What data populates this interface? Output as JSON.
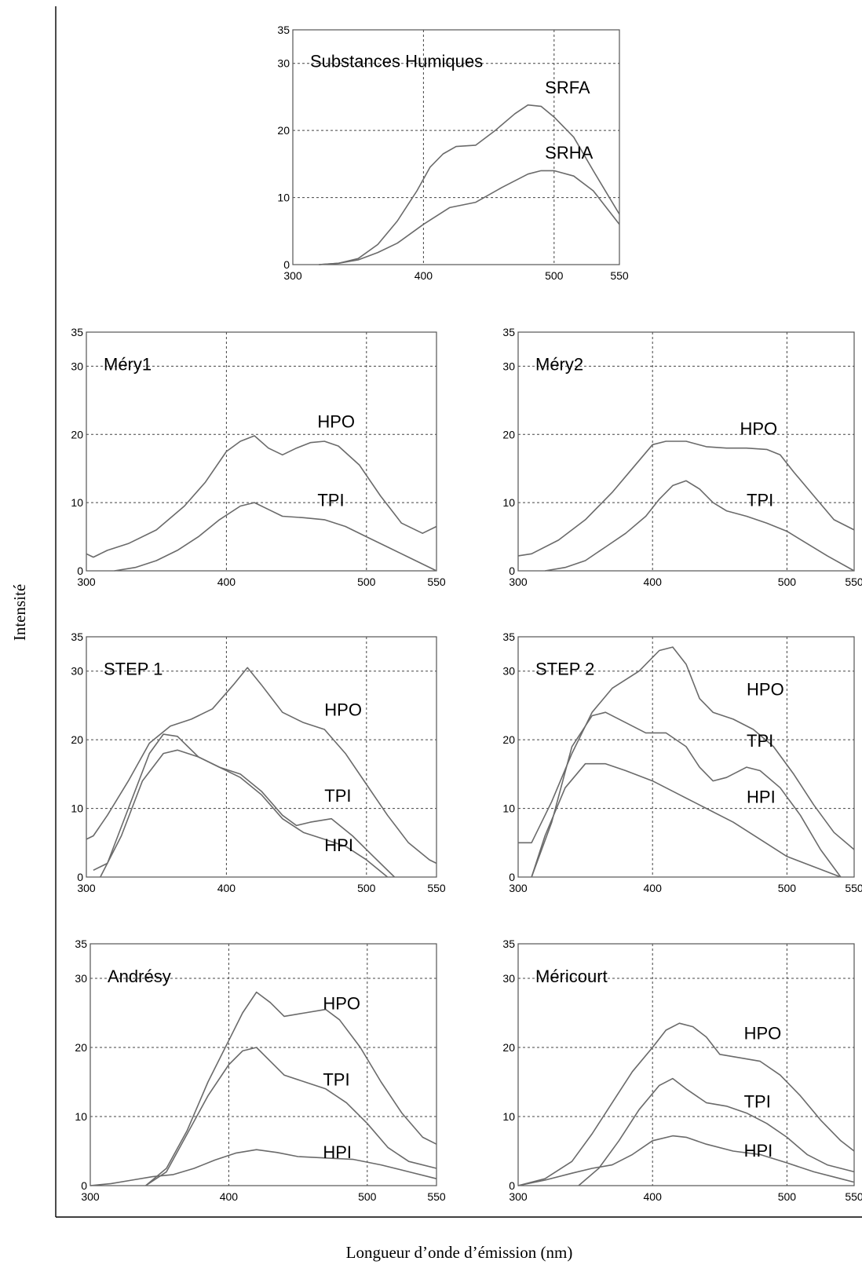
{
  "figure": {
    "y_title": "Intensité",
    "x_title": "Longueur d’onde d’émission (nm)"
  },
  "chart_data": [
    {
      "type": "line",
      "title": "Substances Humiques",
      "xlim": [
        300,
        550
      ],
      "ylim": [
        0,
        35
      ],
      "xticks": [
        300,
        400,
        500,
        550
      ],
      "yticks": [
        0,
        10,
        20,
        30,
        35
      ],
      "grid": true,
      "series": [
        {
          "name": "SRFA",
          "label_at": [
            493,
            25.5
          ],
          "x": [
            320,
            335,
            350,
            365,
            380,
            395,
            405,
            415,
            425,
            440,
            455,
            470,
            480,
            490,
            500,
            515,
            530,
            550
          ],
          "y": [
            0,
            0.2,
            0.9,
            3,
            6.5,
            11,
            14.5,
            16.5,
            17.6,
            17.8,
            20,
            22.5,
            23.8,
            23.6,
            22,
            19,
            14,
            7.5
          ]
        },
        {
          "name": "SRHA",
          "label_at": [
            493,
            15.8
          ],
          "x": [
            320,
            335,
            350,
            365,
            380,
            400,
            420,
            440,
            460,
            480,
            490,
            500,
            515,
            530,
            550
          ],
          "y": [
            0,
            0.2,
            0.7,
            1.8,
            3.2,
            6,
            8.5,
            9.3,
            11.5,
            13.5,
            14,
            14,
            13.2,
            11,
            6
          ]
        }
      ]
    },
    {
      "type": "line",
      "title": "Méry1",
      "xlim": [
        300,
        550
      ],
      "ylim": [
        0,
        35
      ],
      "xticks": [
        300,
        400,
        500,
        550
      ],
      "yticks": [
        0,
        10,
        20,
        30,
        35
      ],
      "grid": true,
      "series": [
        {
          "name": "HPO",
          "label_at": [
            465,
            21
          ],
          "x": [
            300,
            305,
            315,
            330,
            350,
            370,
            385,
            400,
            410,
            420,
            430,
            440,
            450,
            460,
            470,
            480,
            495,
            510,
            525,
            540,
            550
          ],
          "y": [
            2.5,
            2,
            3,
            4,
            6,
            9.5,
            13,
            17.5,
            19,
            19.8,
            18,
            17,
            18,
            18.8,
            19,
            18.3,
            15.5,
            11,
            7,
            5.5,
            6.5
          ],
          "color": "#6a6a6a"
        },
        {
          "name": "TPI",
          "label_at": [
            465,
            9.5
          ],
          "x": [
            320,
            335,
            350,
            365,
            380,
            395,
            410,
            420,
            430,
            440,
            455,
            470,
            485,
            500,
            515,
            530,
            550
          ],
          "y": [
            0,
            0.5,
            1.5,
            3,
            5,
            7.5,
            9.5,
            10,
            9,
            8,
            7.8,
            7.5,
            6.5,
            5,
            3.5,
            2,
            0
          ],
          "color": "#6a6a6a"
        }
      ]
    },
    {
      "type": "line",
      "title": "Méry2",
      "xlim": [
        300,
        550
      ],
      "ylim": [
        0,
        35
      ],
      "xticks": [
        300,
        400,
        500,
        550
      ],
      "yticks": [
        0,
        10,
        20,
        30,
        35
      ],
      "grid": true,
      "series": [
        {
          "name": "HPO",
          "label_at": [
            465,
            20
          ],
          "x": [
            300,
            310,
            330,
            350,
            370,
            385,
            400,
            410,
            425,
            440,
            455,
            470,
            485,
            495,
            505,
            520,
            535,
            550
          ],
          "y": [
            2.2,
            2.5,
            4.5,
            7.5,
            11.5,
            15,
            18.5,
            19,
            19,
            18.2,
            18,
            18,
            17.8,
            17,
            14.5,
            11,
            7.5,
            6
          ],
          "color": "#6a6a6a"
        },
        {
          "name": "TPI",
          "label_at": [
            470,
            9.5
          ],
          "x": [
            320,
            335,
            350,
            365,
            380,
            395,
            405,
            415,
            425,
            435,
            445,
            455,
            470,
            485,
            500,
            515,
            530,
            550
          ],
          "y": [
            0,
            0.5,
            1.5,
            3.5,
            5.5,
            8,
            10.5,
            12.5,
            13.2,
            12,
            10,
            8.8,
            8,
            7,
            5.8,
            4,
            2.2,
            0
          ],
          "color": "#6a6a6a"
        }
      ]
    },
    {
      "type": "line",
      "title": "STEP 1",
      "xlim": [
        300,
        550
      ],
      "ylim": [
        0,
        35
      ],
      "xticks": [
        300,
        400,
        500,
        550
      ],
      "yticks": [
        0,
        10,
        20,
        30,
        35
      ],
      "grid": true,
      "series": [
        {
          "name": "HPO",
          "label_at": [
            470,
            23.5
          ],
          "x": [
            300,
            305,
            315,
            330,
            345,
            360,
            375,
            390,
            405,
            415,
            425,
            440,
            455,
            470,
            485,
            500,
            515,
            530,
            545,
            550
          ],
          "y": [
            5.5,
            6,
            9,
            14,
            19.5,
            22,
            23,
            24.5,
            28,
            30.5,
            28,
            24,
            22.5,
            21.5,
            18,
            13.5,
            9,
            5,
            2.5,
            2
          ],
          "color": "#6a6a6a"
        },
        {
          "name": "TPI",
          "label_at": [
            470,
            11
          ],
          "x": [
            305,
            315,
            330,
            345,
            355,
            365,
            380,
            395,
            410,
            425,
            440,
            450,
            460,
            475,
            490,
            505,
            520
          ],
          "y": [
            1,
            2,
            10,
            18,
            20.8,
            20.5,
            17.5,
            16,
            15,
            12.5,
            9,
            7.5,
            8,
            8.5,
            6,
            3,
            0
          ],
          "color": "#6a6a6a"
        },
        {
          "name": "HPI",
          "label_at": [
            470,
            3.8
          ],
          "x": [
            310,
            325,
            340,
            355,
            365,
            380,
            395,
            410,
            425,
            440,
            455,
            470,
            485,
            500,
            515
          ],
          "y": [
            0,
            6,
            14,
            18,
            18.5,
            17.5,
            16,
            14.5,
            12,
            8.5,
            6.5,
            5.5,
            4.5,
            2.5,
            0
          ],
          "color": "#6a6a6a"
        }
      ]
    },
    {
      "type": "line",
      "title": "STEP 2",
      "xlim": [
        300,
        550
      ],
      "ylim": [
        0,
        35
      ],
      "xticks": [
        300,
        400,
        500,
        550
      ],
      "yticks": [
        0,
        10,
        20,
        30,
        35
      ],
      "grid": true,
      "series": [
        {
          "name": "HPO",
          "label_at": [
            470,
            26.5
          ],
          "x": [
            300,
            310,
            325,
            340,
            355,
            370,
            390,
            405,
            415,
            425,
            435,
            445,
            460,
            475,
            490,
            505,
            520,
            535,
            550
          ],
          "y": [
            5,
            5,
            11,
            18,
            24,
            27.5,
            30,
            33,
            33.5,
            31,
            26,
            24,
            23,
            21.5,
            19,
            15,
            10.5,
            6.5,
            4
          ],
          "color": "#6a6a6a"
        },
        {
          "name": "TPI",
          "label_at": [
            470,
            19
          ],
          "x": [
            310,
            325,
            340,
            355,
            365,
            380,
            395,
            410,
            425,
            435,
            445,
            455,
            470,
            480,
            495,
            510,
            525,
            540
          ],
          "y": [
            0,
            8,
            19,
            23.5,
            24,
            22.5,
            21,
            21,
            19,
            16,
            14,
            14.5,
            16,
            15.5,
            13,
            9,
            4,
            0
          ],
          "color": "#6a6a6a"
        },
        {
          "name": "HPI",
          "label_at": [
            470,
            10.8
          ],
          "x": [
            310,
            320,
            335,
            350,
            365,
            380,
            400,
            420,
            440,
            460,
            480,
            500,
            520,
            540
          ],
          "y": [
            0,
            6,
            13,
            16.5,
            16.5,
            15.5,
            14,
            12,
            10,
            8,
            5.5,
            3,
            1.5,
            0
          ],
          "color": "#444444"
        }
      ]
    },
    {
      "type": "line",
      "title": "Andrésy",
      "xlim": [
        300,
        550
      ],
      "ylim": [
        0,
        35
      ],
      "xticks": [
        300,
        400,
        500,
        550
      ],
      "yticks": [
        0,
        10,
        20,
        30,
        35
      ],
      "grid": true,
      "series": [
        {
          "name": "HPO",
          "label_at": [
            468,
            25.5
          ],
          "x": [
            340,
            355,
            370,
            385,
            400,
            410,
            420,
            430,
            440,
            455,
            470,
            480,
            495,
            510,
            525,
            540,
            550
          ],
          "y": [
            0,
            2.5,
            8,
            15,
            21,
            25,
            28,
            26.5,
            24.5,
            25,
            25.5,
            24,
            20,
            15,
            10.5,
            7,
            6
          ],
          "color": "#3a3a3a"
        },
        {
          "name": "TPI",
          "label_at": [
            468,
            14.5
          ],
          "x": [
            340,
            355,
            370,
            385,
            400,
            410,
            420,
            430,
            440,
            455,
            470,
            485,
            500,
            515,
            530,
            550
          ],
          "y": [
            0,
            2,
            7.5,
            13,
            17.5,
            19.5,
            20,
            18,
            16,
            15,
            14,
            12,
            9,
            5.5,
            3.5,
            2.5
          ],
          "color": "#3a3a3a"
        },
        {
          "name": "HPI",
          "label_at": [
            468,
            4
          ],
          "x": [
            300,
            315,
            330,
            345,
            360,
            375,
            390,
            405,
            420,
            435,
            450,
            470,
            490,
            510,
            530,
            550
          ],
          "y": [
            0,
            0.3,
            0.8,
            1.3,
            1.6,
            2.5,
            3.7,
            4.7,
            5.2,
            4.8,
            4.2,
            4,
            3.8,
            3,
            2,
            1
          ],
          "color": "#3a3a3a"
        }
      ]
    },
    {
      "type": "line",
      "title": "Méricourt",
      "xlim": [
        300,
        550
      ],
      "ylim": [
        0,
        35
      ],
      "xticks": [
        300,
        400,
        500,
        550
      ],
      "yticks": [
        0,
        10,
        20,
        30,
        35
      ],
      "grid": true,
      "series": [
        {
          "name": "HPO",
          "label_at": [
            468,
            21.2
          ],
          "x": [
            300,
            320,
            340,
            355,
            370,
            385,
            400,
            410,
            420,
            430,
            440,
            450,
            465,
            480,
            495,
            510,
            525,
            540,
            550
          ],
          "y": [
            0,
            1,
            3.5,
            7.5,
            12,
            16.5,
            20,
            22.5,
            23.5,
            23,
            21.5,
            19,
            18.5,
            18,
            16,
            13,
            9.5,
            6.5,
            5
          ],
          "color": "#3a3a3a"
        },
        {
          "name": "TPI",
          "label_at": [
            468,
            11.3
          ],
          "x": [
            345,
            360,
            375,
            390,
            405,
            415,
            425,
            440,
            455,
            470,
            485,
            500,
            515,
            530,
            550
          ],
          "y": [
            0,
            2.5,
            6.5,
            11,
            14.5,
            15.5,
            14,
            12,
            11.5,
            10.5,
            9,
            7,
            4.5,
            3,
            2
          ],
          "color": "#3a3a3a"
        },
        {
          "name": "HPI",
          "label_at": [
            468,
            4.2
          ],
          "x": [
            300,
            320,
            340,
            355,
            370,
            385,
            400,
            415,
            425,
            440,
            460,
            480,
            500,
            520,
            540,
            550
          ],
          "y": [
            0,
            0.8,
            1.8,
            2.5,
            3,
            4.5,
            6.5,
            7.2,
            7,
            6,
            5,
            4.5,
            3.3,
            2,
            1,
            0.5
          ],
          "color": "#3a3a3a"
        }
      ]
    }
  ]
}
